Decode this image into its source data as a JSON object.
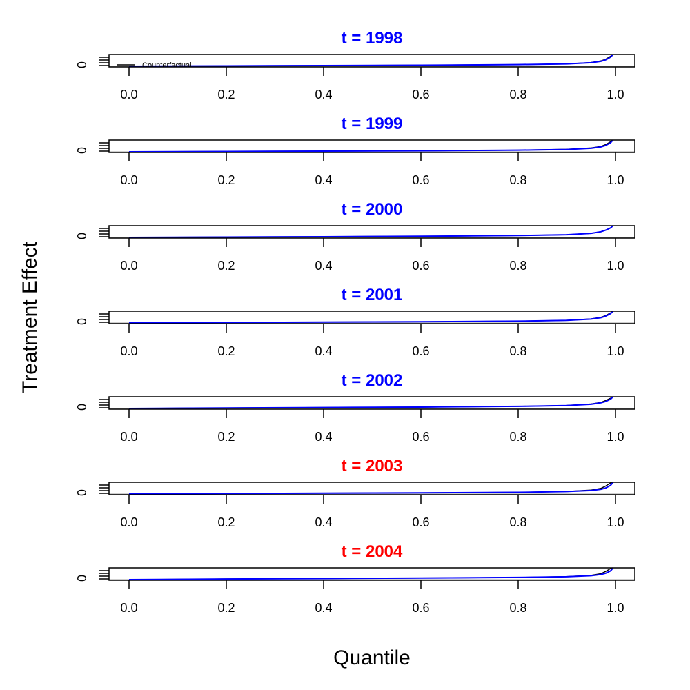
{
  "chart_data": {
    "type": "line",
    "xlabel": "Quantile",
    "ylabel": "Treatment Effect",
    "xlim": [
      0.0,
      1.0
    ],
    "x_ticks": [
      "0.0",
      "0.2",
      "0.4",
      "0.6",
      "0.8",
      "1.0"
    ],
    "y_tick_label": "0",
    "legend": {
      "entries": [
        "Counterfactual"
      ],
      "placement": "top-left",
      "clipped": true
    },
    "colors": {
      "pre_treatment_title": "#0000ff",
      "post_treatment_title": "#ff0000",
      "series_blue": "#0000ff",
      "series_black": "#000000",
      "zero_line": "#bebebe"
    },
    "quantiles": [
      0.0,
      0.2,
      0.4,
      0.6,
      0.8,
      0.9,
      0.95,
      0.97,
      0.98,
      0.99,
      0.995
    ],
    "panels": [
      {
        "title": "t = 1998",
        "period": "pre",
        "series": [
          {
            "color": "blue",
            "values": [
              0.0,
              0.03,
              0.06,
              0.09,
              0.14,
              0.2,
              0.3,
              0.42,
              0.55,
              0.78,
              1.0
            ]
          },
          {
            "color": "black",
            "values": [
              0.0,
              0.03,
              0.06,
              0.09,
              0.14,
              0.2,
              0.32,
              0.45,
              0.6,
              0.85,
              1.0
            ]
          }
        ]
      },
      {
        "title": "t = 1999",
        "period": "pre",
        "series": [
          {
            "color": "blue",
            "values": [
              0.0,
              0.03,
              0.06,
              0.09,
              0.14,
              0.2,
              0.3,
              0.42,
              0.55,
              0.78,
              1.0
            ]
          },
          {
            "color": "black",
            "values": [
              0.0,
              0.03,
              0.06,
              0.09,
              0.14,
              0.21,
              0.33,
              0.46,
              0.62,
              0.86,
              1.0
            ]
          }
        ]
      },
      {
        "title": "t = 2000",
        "period": "pre",
        "series": [
          {
            "color": "blue",
            "values": [
              0.0,
              0.03,
              0.06,
              0.1,
              0.16,
              0.23,
              0.35,
              0.48,
              0.62,
              0.82,
              1.0
            ]
          },
          {
            "color": "black",
            "values": [
              0.0,
              0.03,
              0.06,
              0.1,
              0.16,
              0.23,
              0.35,
              0.48,
              0.62,
              0.82,
              1.0
            ]
          }
        ]
      },
      {
        "title": "t = 2001",
        "period": "pre",
        "series": [
          {
            "color": "blue",
            "values": [
              0.0,
              0.04,
              0.07,
              0.1,
              0.15,
              0.22,
              0.33,
              0.45,
              0.58,
              0.8,
              1.0
            ]
          },
          {
            "color": "black",
            "values": [
              0.0,
              0.04,
              0.07,
              0.1,
              0.15,
              0.22,
              0.35,
              0.48,
              0.63,
              0.86,
              1.0
            ]
          }
        ]
      },
      {
        "title": "t = 2002",
        "period": "pre",
        "series": [
          {
            "color": "blue",
            "values": [
              0.0,
              0.04,
              0.08,
              0.12,
              0.18,
              0.25,
              0.36,
              0.48,
              0.6,
              0.8,
              1.0
            ]
          },
          {
            "color": "black",
            "values": [
              0.0,
              0.04,
              0.08,
              0.12,
              0.18,
              0.26,
              0.38,
              0.52,
              0.68,
              0.88,
              1.0
            ]
          }
        ]
      },
      {
        "title": "t = 2003",
        "period": "post",
        "series": [
          {
            "color": "blue",
            "values": [
              0.0,
              0.04,
              0.07,
              0.1,
              0.15,
              0.21,
              0.3,
              0.4,
              0.52,
              0.75,
              1.0
            ]
          },
          {
            "color": "black",
            "values": [
              0.0,
              0.04,
              0.07,
              0.1,
              0.15,
              0.22,
              0.34,
              0.48,
              0.68,
              0.95,
              1.0
            ]
          }
        ]
      },
      {
        "title": "t = 2004",
        "period": "post",
        "series": [
          {
            "color": "blue",
            "values": [
              0.0,
              0.05,
              0.09,
              0.13,
              0.18,
              0.24,
              0.33,
              0.43,
              0.54,
              0.75,
              1.0
            ]
          },
          {
            "color": "black",
            "values": [
              0.0,
              0.05,
              0.09,
              0.13,
              0.18,
              0.25,
              0.36,
              0.5,
              0.7,
              0.95,
              1.0
            ]
          }
        ]
      }
    ]
  }
}
